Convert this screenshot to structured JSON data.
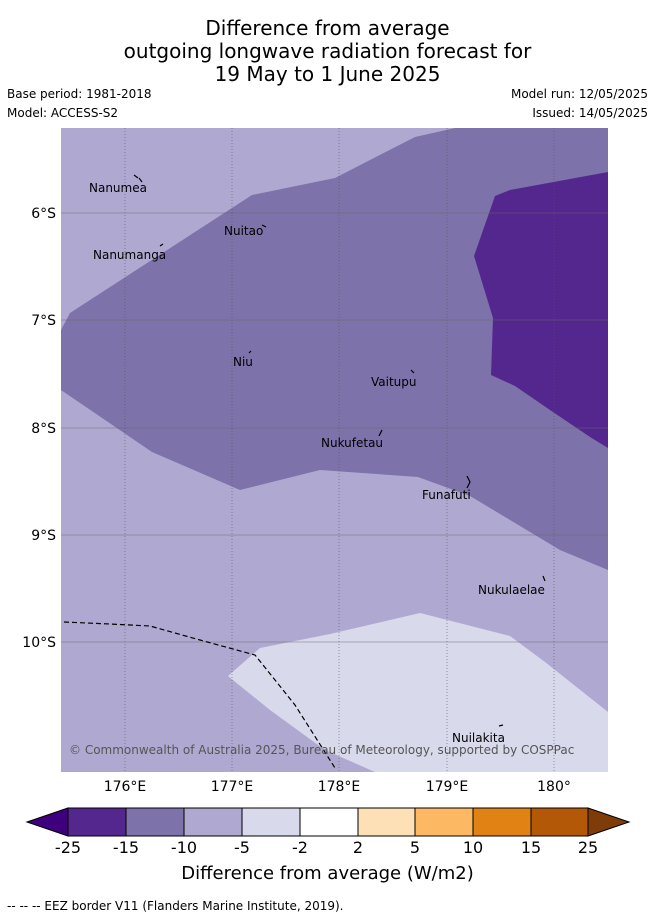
{
  "title": {
    "line1": "Difference from average",
    "line2": "outgoing longwave radiation forecast for",
    "line3": "19 May to 1 June 2025"
  },
  "meta": {
    "base_period": "Base period: 1981-2018",
    "model": "Model: ACCESS-S2",
    "model_run": "Model run: 12/05/2025",
    "issued": "Issued: 14/05/2025"
  },
  "map": {
    "lat_labels": [
      "6°S",
      "7°S",
      "8°S",
      "9°S",
      "10°S"
    ],
    "lon_labels": [
      "176°E",
      "177°E",
      "178°E",
      "179°E",
      "180°"
    ],
    "places": [
      "Nanumea",
      "Nuitao",
      "Nanumanga",
      "Niu",
      "Vaitupu",
      "Nukufetau",
      "Funafuti",
      "Nukulaelae",
      "Nuilakita"
    ],
    "copyright": "© Commonwealth of Australia 2025, Bureau of Meteorology, supported by COSPPac",
    "colors": {
      "-25_-15": "#54278f",
      "-15_-10": "#7e72aa",
      "-10_-5": "#afa9d1",
      "-5_-2": "#d9d9ec"
    }
  },
  "colorbar": {
    "labels": [
      "-25",
      "-15",
      "-10",
      "-5",
      "-2",
      "2",
      "5",
      "10",
      "15",
      "25"
    ],
    "colors": [
      "#3f007d",
      "#54278f",
      "#7e72aa",
      "#afa9d1",
      "#d9d9ec",
      "#ffffff",
      "#fee0b6",
      "#fdb863",
      "#e08214",
      "#b35806",
      "#7f3b08"
    ],
    "title": "Difference from average (W/m2)"
  },
  "footnote": "-- -- -- EEZ border V11 (Flanders Marine Institute, 2019)."
}
